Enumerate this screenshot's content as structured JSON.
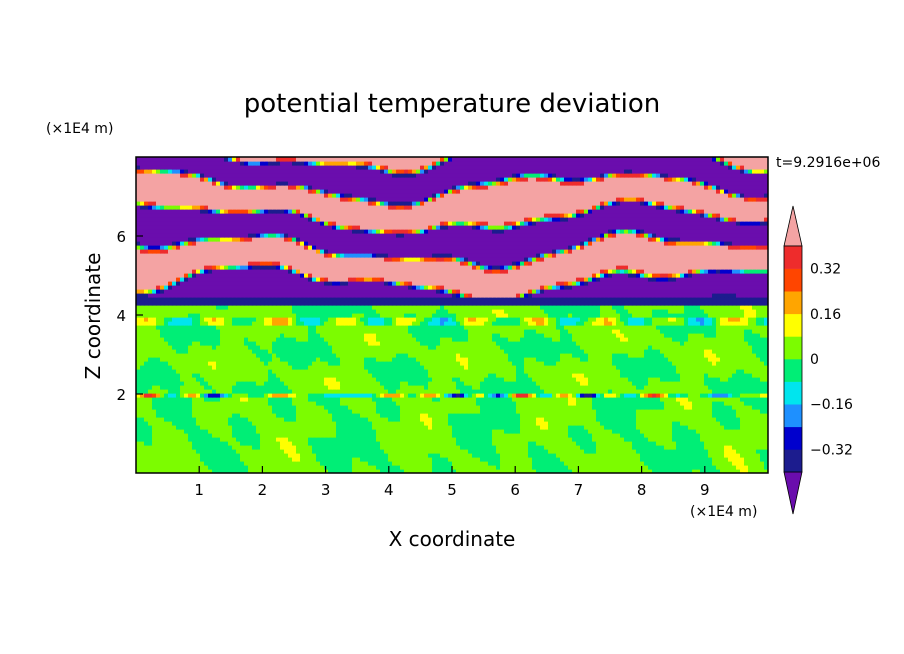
{
  "chart_data": {
    "type": "heatmap",
    "title": "potential temperature deviation",
    "xlabel": "X coordinate",
    "ylabel": "Z coordinate",
    "x_unit": "(×1E4 m)",
    "y_unit": "(×1E4 m)",
    "time_label": "t=9.2916e+06",
    "xlim": [
      0,
      10
    ],
    "ylim": [
      0,
      8
    ],
    "x_ticks": [
      "1",
      "2",
      "3",
      "4",
      "5",
      "6",
      "7",
      "8",
      "9"
    ],
    "y_ticks": [
      "2",
      "4",
      "6"
    ],
    "colorbar": {
      "tick_labels": [
        "0.32",
        "0.16",
        "0",
        "−0.16",
        "−0.32"
      ],
      "tick_values": [
        0.32,
        0.16,
        0,
        -0.16,
        -0.32
      ],
      "levels": [
        -0.4,
        -0.32,
        -0.24,
        -0.16,
        -0.08,
        0,
        0.08,
        0.16,
        0.24,
        0.32,
        0.4
      ],
      "colors": [
        "#6a0dad",
        "#1c1c8e",
        "#0000cd",
        "#1e90ff",
        "#00e5ee",
        "#00ee76",
        "#7cfc00",
        "#ffff00",
        "#ffa500",
        "#ff4500",
        "#ee2c2c",
        "#f4a3a3"
      ],
      "extend": "both"
    },
    "field_description_layers": [
      {
        "z_range": [
          0,
          2
        ],
        "dominant_values": [
          0.0,
          0.05
        ]
      },
      {
        "z_range": [
          2,
          4.3
        ],
        "dominant_values": [
          0.0,
          0.05
        ]
      },
      {
        "z_range": [
          4.3,
          8
        ],
        "dominant_values": [
          -0.45,
          0.45
        ]
      }
    ]
  }
}
